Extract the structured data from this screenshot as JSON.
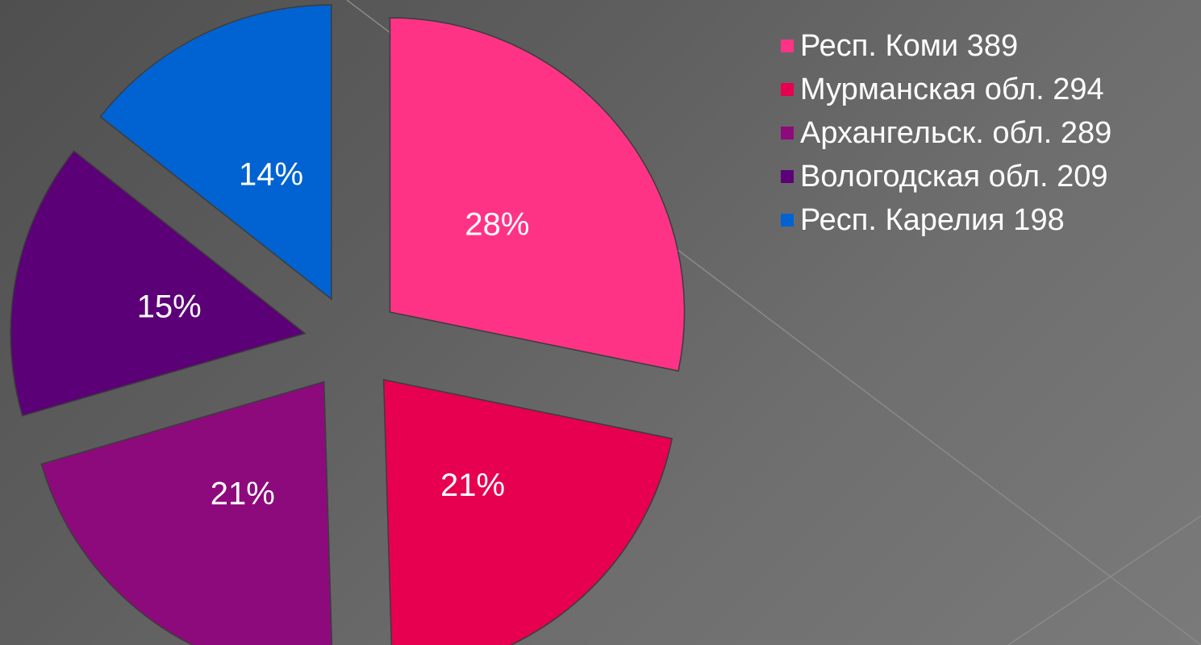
{
  "chart_data": {
    "type": "pie",
    "exploded": true,
    "legend_position": "top-right",
    "slices": [
      {
        "label": "Респ. Коми 389",
        "value": 389,
        "percent_label": "28%",
        "color": "#ff3386"
      },
      {
        "label": "Мурманская обл. 294",
        "value": 294,
        "percent_label": "21%",
        "color": "#e6004f"
      },
      {
        "label": "Архангельск. обл. 289",
        "value": 289,
        "percent_label": "21%",
        "color": "#8d0a7c"
      },
      {
        "label": "Вологодская обл. 209",
        "value": 209,
        "percent_label": "15%",
        "color": "#5c0077"
      },
      {
        "label": "Респ. Карелия 198",
        "value": 198,
        "percent_label": "14%",
        "color": "#0063d1"
      }
    ]
  }
}
